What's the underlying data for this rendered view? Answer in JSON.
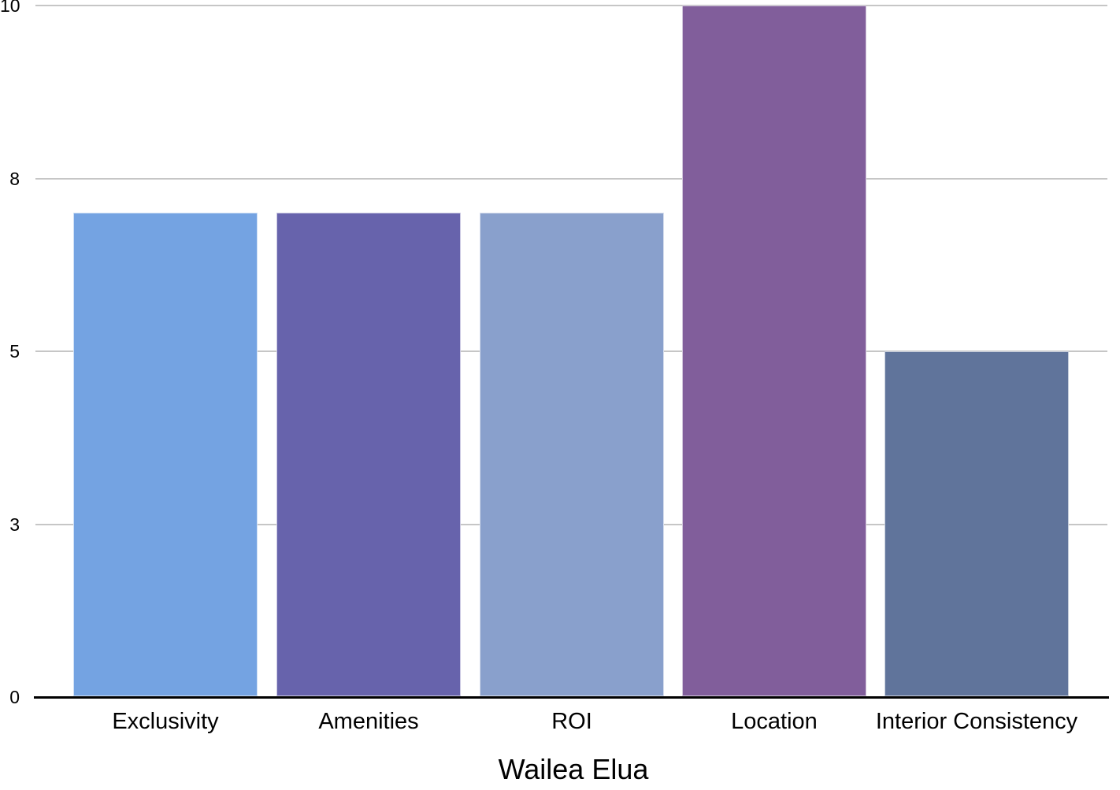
{
  "chart_data": {
    "type": "bar",
    "title": "Wailea Elua",
    "categories": [
      "Exclusivity",
      "Amenities",
      "ROI",
      "Location",
      "Interior Consistency"
    ],
    "values": [
      7,
      7,
      7,
      10,
      5
    ],
    "bar_colors": [
      "#74A3E2",
      "#6763AC",
      "#89A0CC",
      "#815E9B",
      "#60749B"
    ],
    "xlabel": "",
    "ylabel": "",
    "ylim": [
      0,
      10
    ],
    "y_ticks": [
      {
        "value": 0,
        "label": "0"
      },
      {
        "value": 2.5,
        "label": "3"
      },
      {
        "value": 5,
        "label": "5"
      },
      {
        "value": 7.5,
        "label": "8"
      },
      {
        "value": 10,
        "label": "10"
      }
    ],
    "grid": true,
    "legend": "none",
    "colors": {
      "background": "#FFFFFF",
      "gridline": "#C6C6C6",
      "axis_line": "#000000",
      "text": "#000000"
    }
  }
}
